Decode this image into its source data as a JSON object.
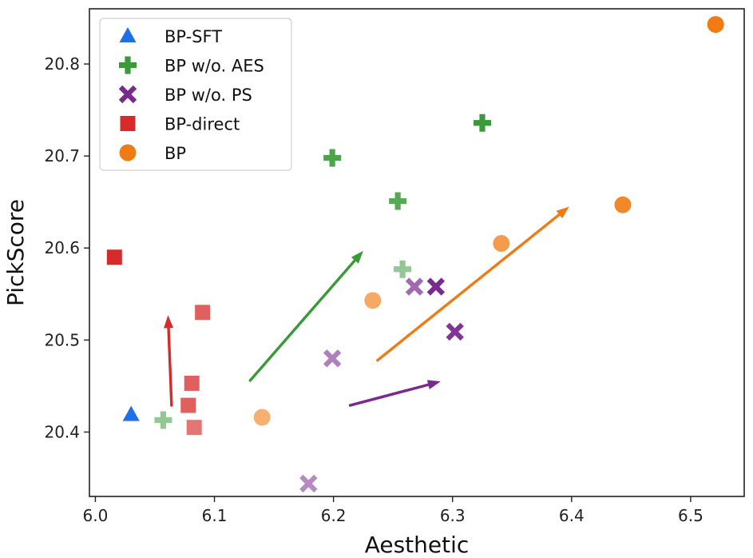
{
  "chart_data": {
    "type": "scatter",
    "title": "",
    "xlabel": "Aesthetic",
    "ylabel": "PickScore",
    "xlim": [
      5.995,
      6.545
    ],
    "ylim": [
      20.33,
      20.86
    ],
    "xticks": [
      6.0,
      6.1,
      6.2,
      6.3,
      6.4,
      6.5
    ],
    "xtick_labels": [
      "6.0",
      "6.1",
      "6.2",
      "6.3",
      "6.4",
      "6.5"
    ],
    "yticks": [
      20.4,
      20.5,
      20.6,
      20.7,
      20.8
    ],
    "ytick_labels": [
      "20.4",
      "20.5",
      "20.6",
      "20.7",
      "20.8"
    ],
    "grid": false,
    "legend_position": "top-left",
    "series": [
      {
        "name": "BP-SFT",
        "marker": "triangle",
        "color": "#1f6fe8",
        "points": [
          {
            "x": 6.03,
            "y": 20.419,
            "alpha": 1.0
          }
        ]
      },
      {
        "name": "BP w/o. AES",
        "marker": "plus",
        "color": "#3a9a3a",
        "points": [
          {
            "x": 6.057,
            "y": 20.413,
            "alpha": 0.55
          },
          {
            "x": 6.258,
            "y": 20.577,
            "alpha": 0.55
          },
          {
            "x": 6.254,
            "y": 20.651,
            "alpha": 0.85
          },
          {
            "x": 6.199,
            "y": 20.698,
            "alpha": 0.9
          },
          {
            "x": 6.325,
            "y": 20.736,
            "alpha": 1.0
          }
        ]
      },
      {
        "name": "BP w/o. PS",
        "marker": "x",
        "color": "#7a2a8e",
        "points": [
          {
            "x": 6.179,
            "y": 20.344,
            "alpha": 0.55
          },
          {
            "x": 6.199,
            "y": 20.48,
            "alpha": 0.6
          },
          {
            "x": 6.268,
            "y": 20.558,
            "alpha": 0.7
          },
          {
            "x": 6.286,
            "y": 20.558,
            "alpha": 1.0
          },
          {
            "x": 6.302,
            "y": 20.509,
            "alpha": 0.95
          }
        ]
      },
      {
        "name": "BP-direct",
        "marker": "square",
        "color": "#d62b2b",
        "points": [
          {
            "x": 6.016,
            "y": 20.59,
            "alpha": 1.0
          },
          {
            "x": 6.09,
            "y": 20.53,
            "alpha": 0.75
          },
          {
            "x": 6.081,
            "y": 20.453,
            "alpha": 0.75
          },
          {
            "x": 6.078,
            "y": 20.429,
            "alpha": 0.75
          },
          {
            "x": 6.083,
            "y": 20.405,
            "alpha": 0.65
          }
        ]
      },
      {
        "name": "BP",
        "marker": "circle",
        "color": "#f07b12",
        "points": [
          {
            "x": 6.14,
            "y": 20.416,
            "alpha": 0.6
          },
          {
            "x": 6.233,
            "y": 20.543,
            "alpha": 0.65
          },
          {
            "x": 6.341,
            "y": 20.605,
            "alpha": 0.75
          },
          {
            "x": 6.443,
            "y": 20.647,
            "alpha": 0.9
          },
          {
            "x": 6.521,
            "y": 20.843,
            "alpha": 1.0
          }
        ]
      }
    ],
    "arrows": [
      {
        "name": "bp-direct-trend",
        "color": "#d62b2b",
        "x0": 6.064,
        "y0": 20.429,
        "x1": 6.061,
        "y1": 20.527
      },
      {
        "name": "bp-wo-aes-trend",
        "color": "#3a9a3a",
        "x0": 6.13,
        "y0": 20.456,
        "x1": 6.225,
        "y1": 20.597
      },
      {
        "name": "bp-wo-ps-trend",
        "color": "#7a2a8e",
        "x0": 6.214,
        "y0": 20.429,
        "x1": 6.29,
        "y1": 20.455
      },
      {
        "name": "bp-trend",
        "color": "#f07b12",
        "x0": 6.237,
        "y0": 20.478,
        "x1": 6.398,
        "y1": 20.645
      }
    ]
  }
}
